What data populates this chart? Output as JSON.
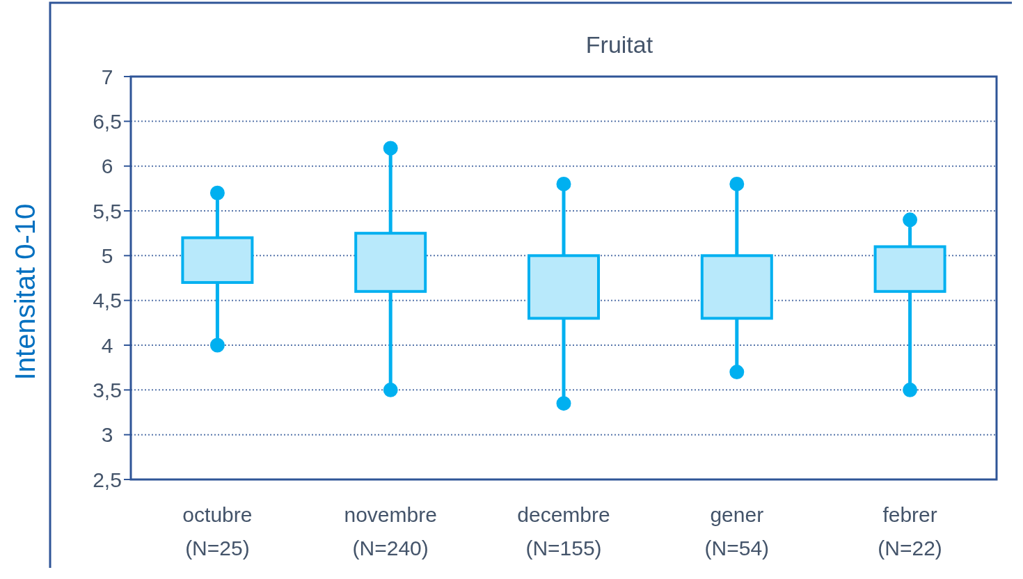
{
  "chart_data": {
    "type": "box",
    "title": "Fruitat",
    "ylabel": "Intensitat 0-10",
    "categories": [
      "octubre\n(N=25)",
      "novembre\n(N=240)",
      "decembre\n(N=155)",
      "gener\n(N=54)",
      "febrer\n(N=22)"
    ],
    "boxes": [
      {
        "low": 4.0,
        "q1": 4.7,
        "median": null,
        "q3": 5.2,
        "high": 5.7
      },
      {
        "low": 3.5,
        "q1": 4.6,
        "median": null,
        "q3": 5.25,
        "high": 6.2
      },
      {
        "low": 3.35,
        "q1": 4.3,
        "median": null,
        "q3": 5.0,
        "high": 5.8
      },
      {
        "low": 3.7,
        "q1": 4.3,
        "median": null,
        "q3": 5.0,
        "high": 5.8
      },
      {
        "low": 3.5,
        "q1": 4.6,
        "median": null,
        "q3": 5.1,
        "high": 5.4
      }
    ],
    "color": "#00b0f0",
    "ylim": [
      2.5,
      7
    ],
    "yticks": [
      {
        "value": 2.5,
        "label": "2,5"
      },
      3,
      {
        "value": 3.5,
        "label": "3,5"
      },
      4,
      {
        "value": 4.5,
        "label": "4,5"
      },
      5,
      {
        "value": 5.5,
        "label": "5,5"
      },
      6,
      {
        "value": 6.5,
        "label": "6,5"
      },
      7
    ],
    "grid": "y",
    "line_style": "dotted",
    "marker": "circle"
  }
}
